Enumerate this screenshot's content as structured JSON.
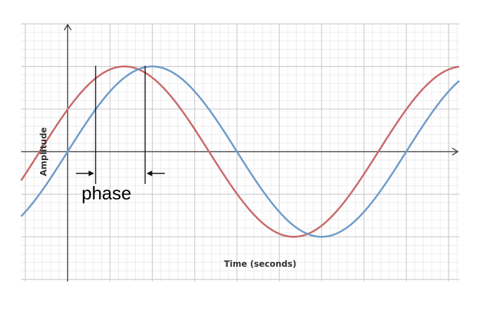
{
  "chart_data": {
    "type": "line",
    "xlabel": "Time (seconds)",
    "ylabel": "Amplitude",
    "xlim": [
      -1.1,
      9.25
    ],
    "ylim": [
      -3.05,
      3.0
    ],
    "grid": true,
    "annotation": "phase",
    "series": [
      {
        "color": "#c96a6b",
        "amplitude": 2,
        "period": 8,
        "phase_shift": 0.66
      },
      {
        "color": "#6f9cc9",
        "amplitude": 2,
        "period": 8,
        "phase_shift": 0
      }
    ],
    "phase_markers": [
      0.66,
      1.83
    ]
  }
}
